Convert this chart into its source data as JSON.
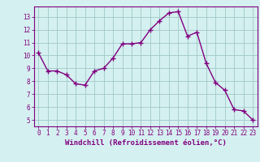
{
  "x": [
    0,
    1,
    2,
    3,
    4,
    5,
    6,
    7,
    8,
    9,
    10,
    11,
    12,
    13,
    14,
    15,
    16,
    17,
    18,
    19,
    20,
    21,
    22,
    23
  ],
  "y": [
    10.2,
    8.8,
    8.8,
    8.5,
    7.8,
    7.7,
    8.8,
    9.0,
    9.8,
    10.9,
    10.9,
    11.0,
    12.0,
    12.7,
    13.3,
    13.4,
    11.5,
    11.8,
    9.4,
    7.9,
    7.3,
    5.8,
    5.7,
    5.0
  ],
  "line_color": "#800080",
  "marker": "+",
  "marker_size": 4,
  "marker_linewidth": 1.0,
  "bg_color": "#d5f0f0",
  "grid_color": "#a0c8c8",
  "xlabel": "Windchill (Refroidissement éolien,°C)",
  "ylim": [
    4.5,
    13.8
  ],
  "xlim": [
    -0.5,
    23.5
  ],
  "yticks": [
    5,
    6,
    7,
    8,
    9,
    10,
    11,
    12,
    13
  ],
  "xticks": [
    0,
    1,
    2,
    3,
    4,
    5,
    6,
    7,
    8,
    9,
    10,
    11,
    12,
    13,
    14,
    15,
    16,
    17,
    18,
    19,
    20,
    21,
    22,
    23
  ],
  "tick_color": "#800080",
  "axis_color": "#800080",
  "tick_fontsize": 5.5,
  "xlabel_fontsize": 6.5,
  "linewidth": 1.0
}
